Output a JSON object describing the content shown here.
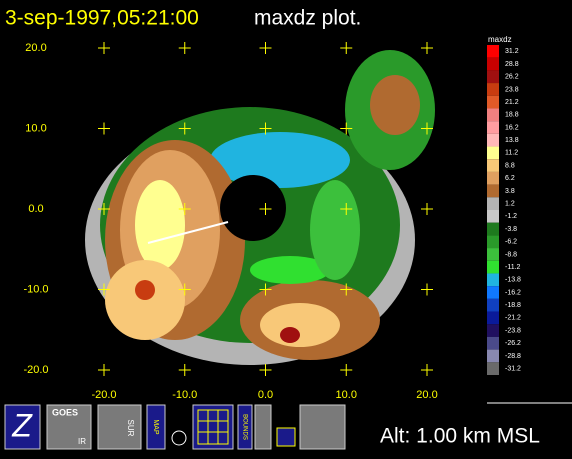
{
  "header": {
    "date_time": "3-sep-1997,05:21:00",
    "plot_name": "maxdz plot."
  },
  "axes": {
    "x_labels": [
      "-20.0",
      "-10.0",
      "0.0",
      "10.0",
      "20.0"
    ],
    "y_labels": [
      "20.0",
      "10.0",
      "0.0",
      "-10.0",
      "-20.0"
    ]
  },
  "colorbar": {
    "label": "maxdz",
    "values": [
      "31.2",
      "28.8",
      "26.2",
      "23.8",
      "21.2",
      "18.8",
      "16.2",
      "13.8",
      "11.2",
      "8.8",
      "6.2",
      "3.8",
      "1.2",
      "-1.2",
      "-3.8",
      "-6.2",
      "-8.8",
      "-11.2",
      "-13.8",
      "-16.2",
      "-18.8",
      "-21.2",
      "-23.8",
      "-26.2",
      "-28.8",
      "-31.2"
    ],
    "colors": [
      "#ff0000",
      "#c80000",
      "#a01010",
      "#c83c10",
      "#e05a28",
      "#f08080",
      "#ff9ca0",
      "#ffb8b8",
      "#ffff90",
      "#f8c878",
      "#e0a060",
      "#b06a30",
      "#b4b4b4",
      "#c8c8c8",
      "#1e7a1e",
      "#2a9a2a",
      "#3cc03c",
      "#30e030",
      "#20b4e0",
      "#1078ff",
      "#1040c0",
      "#0a1a9a",
      "#201060",
      "#4a4a8a",
      "#8888b0",
      "#6a6a6a"
    ]
  },
  "toolbar": {
    "z": "Z",
    "goes": "GOES",
    "ir": "IR",
    "sur": "SUR",
    "map": "MAP",
    "bounds": "BOUNDS"
  },
  "status": {
    "altitude": "Alt: 1.00 km MSL"
  }
}
